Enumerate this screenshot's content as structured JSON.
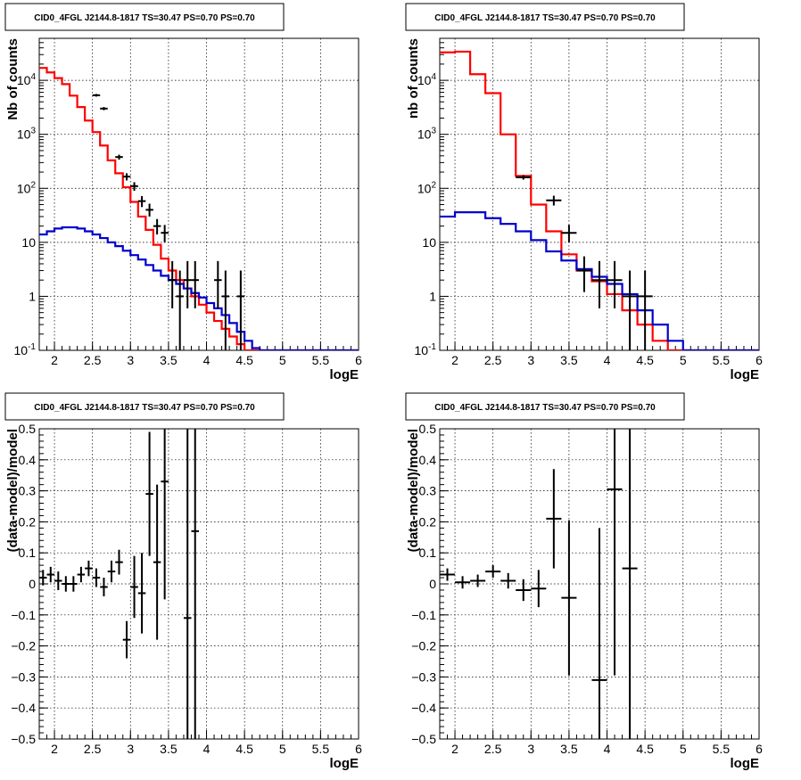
{
  "figure": {
    "background": "#ffffff",
    "colors": {
      "data": "#000000",
      "total_model": "#ff0000",
      "source_model": "#0000cc",
      "grid": "#000000"
    }
  },
  "chart_data": [
    {
      "id": "top-left",
      "type": "line",
      "title": "CID0_4FGL J2144.8-1817 TS=30.47 PS=0.70 PS=0.70",
      "xlabel": "logE",
      "ylabel": "Nb of counts",
      "xlim": [
        1.8,
        6.0
      ],
      "ylim": [
        0.1,
        60000
      ],
      "yscale": "log",
      "grid": true,
      "xticks": [
        "2",
        "2.5",
        "3",
        "3.5",
        "4",
        "4.5",
        "5",
        "5.5",
        "6"
      ],
      "yticks": [
        "10^-1",
        "1",
        "10",
        "10^2",
        "10^3",
        "10^4"
      ],
      "series": [
        {
          "role": "total_model",
          "step": true,
          "bin_width": 0.1,
          "x": [
            1.8,
            1.9,
            2.0,
            2.1,
            2.2,
            2.3,
            2.4,
            2.5,
            2.6,
            2.7,
            2.8,
            2.9,
            3.0,
            3.1,
            3.2,
            3.3,
            3.4,
            3.5,
            3.6,
            3.7,
            3.8,
            3.9,
            4.0,
            4.1,
            4.2,
            4.3,
            4.4,
            4.5,
            4.6,
            4.7,
            4.8,
            4.9,
            5.0,
            5.1,
            5.2,
            5.3,
            5.4,
            5.5,
            5.6,
            5.7,
            5.8,
            5.9
          ],
          "y": [
            17000,
            14000,
            11000,
            8500,
            5200,
            3200,
            1800,
            1100,
            620,
            330,
            190,
            105,
            56,
            30,
            17,
            9,
            5,
            3,
            2,
            1.4,
            1.0,
            0.7,
            0.5,
            0.35,
            0.25,
            0.18,
            0.13,
            0.1,
            0.1,
            0.1,
            0.1,
            0.1,
            0.1,
            0.1,
            0.1,
            0.1,
            0.1,
            0.1,
            0.1,
            0.1,
            0.1,
            0.1
          ]
        },
        {
          "role": "source_model",
          "step": true,
          "bin_width": 0.1,
          "x": [
            1.8,
            1.9,
            2.0,
            2.1,
            2.2,
            2.3,
            2.4,
            2.5,
            2.6,
            2.7,
            2.8,
            2.9,
            3.0,
            3.1,
            3.2,
            3.3,
            3.4,
            3.5,
            3.6,
            3.7,
            3.8,
            3.9,
            4.0,
            4.1,
            4.2,
            4.3,
            4.4,
            4.5,
            4.6,
            4.7,
            4.8,
            4.9,
            5.0,
            5.1,
            5.2,
            5.3,
            5.4,
            5.5,
            5.6,
            5.7,
            5.8,
            5.9
          ],
          "y": [
            14,
            16,
            18,
            19,
            19,
            18,
            16,
            14,
            12,
            10,
            8.5,
            7,
            5.8,
            4.8,
            3.8,
            3,
            2.4,
            2,
            1.7,
            1.4,
            1.15,
            0.95,
            0.75,
            0.6,
            0.45,
            0.32,
            0.22,
            0.15,
            0.11,
            0.1,
            0.1,
            0.1,
            0.1,
            0.1,
            0.1,
            0.1,
            0.1,
            0.1,
            0.1,
            0.1,
            0.1,
            0.1
          ]
        },
        {
          "role": "data",
          "errorbars": true,
          "points": [
            {
              "x": 2.55,
              "y": 5300,
              "lo": 5000,
              "hi": 5600
            },
            {
              "x": 2.65,
              "y": 3000,
              "lo": 2800,
              "hi": 3200
            },
            {
              "x": 2.85,
              "y": 380,
              "lo": 340,
              "hi": 420
            },
            {
              "x": 2.95,
              "y": 165,
              "lo": 140,
              "hi": 190
            },
            {
              "x": 3.05,
              "y": 110,
              "lo": 90,
              "hi": 130
            },
            {
              "x": 3.15,
              "y": 58,
              "lo": 45,
              "hi": 72
            },
            {
              "x": 3.25,
              "y": 40,
              "lo": 30,
              "hi": 52
            },
            {
              "x": 3.35,
              "y": 20,
              "lo": 14,
              "hi": 27
            },
            {
              "x": 3.45,
              "y": 15,
              "lo": 10,
              "hi": 21
            },
            {
              "x": 3.55,
              "y": 2,
              "lo": 0.6,
              "hi": 4.5
            },
            {
              "x": 3.65,
              "y": 1,
              "lo": 0.1,
              "hi": 3
            },
            {
              "x": 3.75,
              "y": 2,
              "lo": 0.6,
              "hi": 4.5
            },
            {
              "x": 3.85,
              "y": 2,
              "lo": 0.6,
              "hi": 4.5
            },
            {
              "x": 4.15,
              "y": 2,
              "lo": 0.6,
              "hi": 4.5
            },
            {
              "x": 4.25,
              "y": 1,
              "lo": 0.1,
              "hi": 3
            },
            {
              "x": 4.45,
              "y": 1,
              "lo": 0.1,
              "hi": 3
            }
          ]
        }
      ]
    },
    {
      "id": "top-right",
      "type": "line",
      "title": "CID0_4FGL J2144.8-1817 TS=30.47 PS=0.70 PS=0.70",
      "xlabel": "logE",
      "ylabel": "nb of counts",
      "xlim": [
        1.8,
        6.0
      ],
      "ylim": [
        0.1,
        60000
      ],
      "yscale": "log",
      "grid": true,
      "xticks": [
        "2",
        "2.5",
        "3",
        "3.5",
        "4",
        "4.5",
        "5",
        "5.5",
        "6"
      ],
      "yticks": [
        "10^-1",
        "1",
        "10",
        "10^2",
        "10^3",
        "10^4"
      ],
      "series": [
        {
          "role": "total_model",
          "step": true,
          "bin_width": 0.2,
          "x": [
            1.8,
            2.0,
            2.2,
            2.4,
            2.6,
            2.8,
            3.0,
            3.2,
            3.4,
            3.6,
            3.8,
            4.0,
            4.2,
            4.4,
            4.6,
            4.8,
            5.0,
            5.2,
            5.4,
            5.6,
            5.8
          ],
          "y": [
            33000,
            34000,
            13000,
            5800,
            1000,
            170,
            50,
            16,
            6,
            3,
            1.9,
            1.1,
            0.55,
            0.3,
            0.15,
            0.1,
            0.1,
            0.1,
            0.1,
            0.1,
            0.1
          ]
        },
        {
          "role": "source_model",
          "step": true,
          "bin_width": 0.2,
          "x": [
            1.8,
            2.0,
            2.2,
            2.4,
            2.6,
            2.8,
            3.0,
            3.2,
            3.4,
            3.6,
            3.8,
            4.0,
            4.2,
            4.4,
            4.6,
            4.8,
            5.0,
            5.2,
            5.4,
            5.6,
            5.8
          ],
          "y": [
            30,
            36,
            36,
            28,
            22,
            16,
            11,
            6.8,
            4.6,
            3.2,
            2.3,
            1.7,
            1.1,
            0.55,
            0.3,
            0.15,
            0.1,
            0.1,
            0.1,
            0.1,
            0.1
          ]
        },
        {
          "role": "data",
          "errorbars": true,
          "points": [
            {
              "x": 2.9,
              "y": 160,
              "lo": 145,
              "hi": 176
            },
            {
              "x": 3.3,
              "y": 60,
              "lo": 48,
              "hi": 73
            },
            {
              "x": 3.5,
              "y": 15,
              "lo": 10,
              "hi": 21
            },
            {
              "x": 3.7,
              "y": 3,
              "lo": 1.2,
              "hi": 5.5
            },
            {
              "x": 3.9,
              "y": 2,
              "lo": 0.6,
              "hi": 4.5
            },
            {
              "x": 4.1,
              "y": 2,
              "lo": 0.6,
              "hi": 4.5
            },
            {
              "x": 4.3,
              "y": 1,
              "lo": 0.1,
              "hi": 3
            },
            {
              "x": 4.5,
              "y": 1,
              "lo": 0.1,
              "hi": 3
            }
          ]
        }
      ]
    },
    {
      "id": "bottom-left",
      "type": "scatter",
      "title": "CID0_4FGL J2144.8-1817 TS=30.47 PS=0.70 PS=0.70",
      "xlabel": "logE",
      "ylabel": "(data-model)/model",
      "xlim": [
        1.8,
        6.0
      ],
      "ylim": [
        -0.5,
        0.5
      ],
      "grid": true,
      "xticks": [
        "2",
        "2.5",
        "3",
        "3.5",
        "4",
        "4.5",
        "5",
        "5.5",
        "6"
      ],
      "yticks": [
        "-0.5",
        "-0.4",
        "-0.3",
        "-0.2",
        "-0.1",
        "0",
        "0.1",
        "0.2",
        "0.3",
        "0.4",
        "0.5"
      ],
      "series": [
        {
          "role": "data",
          "errorbars": true,
          "xerr": 0.05,
          "points": [
            {
              "x": 1.85,
              "y": 0.02,
              "err": 0.025
            },
            {
              "x": 1.95,
              "y": 0.03,
              "err": 0.025
            },
            {
              "x": 2.05,
              "y": 0.01,
              "err": 0.03
            },
            {
              "x": 2.15,
              "y": 0.0,
              "err": 0.025
            },
            {
              "x": 2.25,
              "y": 0.0,
              "err": 0.025
            },
            {
              "x": 2.35,
              "y": 0.03,
              "err": 0.025
            },
            {
              "x": 2.45,
              "y": 0.05,
              "err": 0.025
            },
            {
              "x": 2.55,
              "y": 0.02,
              "err": 0.03
            },
            {
              "x": 2.65,
              "y": -0.01,
              "err": 0.03
            },
            {
              "x": 2.75,
              "y": 0.04,
              "err": 0.035
            },
            {
              "x": 2.85,
              "y": 0.07,
              "err": 0.04
            },
            {
              "x": 2.95,
              "y": -0.18,
              "err": 0.06
            },
            {
              "x": 3.05,
              "y": -0.01,
              "err": 0.1
            },
            {
              "x": 3.15,
              "y": -0.03,
              "err": 0.13
            },
            {
              "x": 3.25,
              "y": 0.29,
              "err": 0.2
            },
            {
              "x": 3.35,
              "y": 0.07,
              "err": 0.25
            },
            {
              "x": 3.45,
              "y": 0.33,
              "err": 0.38
            },
            {
              "x": 3.75,
              "y": -0.11,
              "err": 0.7
            },
            {
              "x": 3.85,
              "y": 0.17,
              "err": 0.9
            }
          ]
        }
      ]
    },
    {
      "id": "bottom-right",
      "type": "scatter",
      "title": "CID0_4FGL J2144.8-1817 TS=30.47 PS=0.70 PS=0.70",
      "xlabel": "logE",
      "ylabel": "(data-model)/model",
      "xlim": [
        1.8,
        6.0
      ],
      "ylim": [
        -0.5,
        0.5
      ],
      "grid": true,
      "xticks": [
        "2",
        "2.5",
        "3",
        "3.5",
        "4",
        "4.5",
        "5",
        "5.5",
        "6"
      ],
      "yticks": [
        "-0.5",
        "-0.4",
        "-0.3",
        "-0.2",
        "-0.1",
        "0",
        "0.1",
        "0.2",
        "0.3",
        "0.4",
        "0.5"
      ],
      "series": [
        {
          "role": "data",
          "errorbars": true,
          "xerr": 0.1,
          "points": [
            {
              "x": 1.9,
              "y": 0.03,
              "err": 0.02
            },
            {
              "x": 2.1,
              "y": 0.005,
              "err": 0.02
            },
            {
              "x": 2.3,
              "y": 0.01,
              "err": 0.02
            },
            {
              "x": 2.5,
              "y": 0.04,
              "err": 0.02
            },
            {
              "x": 2.7,
              "y": 0.01,
              "err": 0.025
            },
            {
              "x": 2.9,
              "y": -0.02,
              "err": 0.035
            },
            {
              "x": 3.1,
              "y": -0.015,
              "err": 0.06
            },
            {
              "x": 3.3,
              "y": 0.21,
              "err": 0.16
            },
            {
              "x": 3.5,
              "y": -0.045,
              "err": 0.25
            },
            {
              "x": 3.9,
              "y": -0.31,
              "err": 0.49
            },
            {
              "x": 4.1,
              "y": 0.305,
              "err": 0.6
            },
            {
              "x": 4.3,
              "y": 0.05,
              "err": 0.7
            }
          ]
        }
      ]
    }
  ]
}
